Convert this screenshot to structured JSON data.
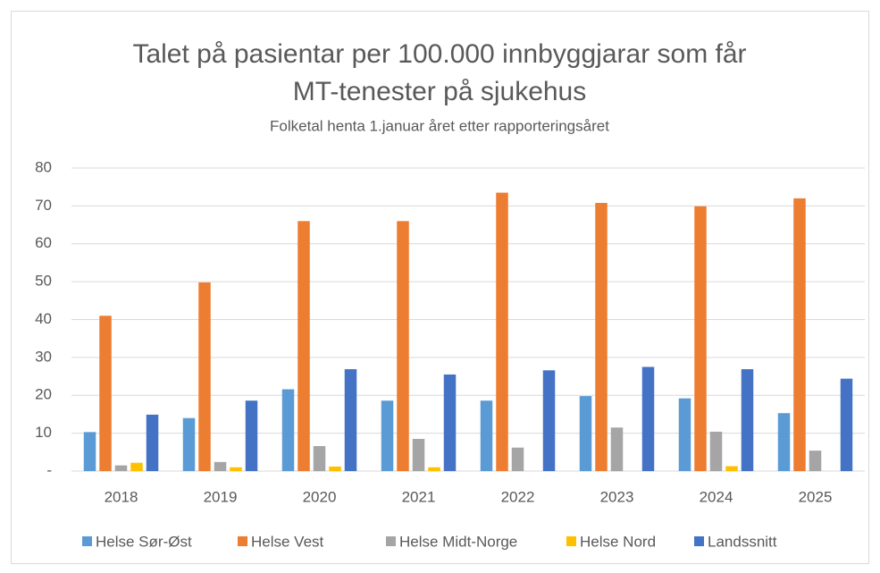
{
  "chart_data": {
    "type": "bar",
    "title": "Talet på pasientar per 100.000 innbyggjarar som får MT-tenester på sjukehus",
    "subtitle": "Folketal henta 1.januar året etter rapporteringsåret",
    "categories": [
      "2018",
      "2019",
      "2020",
      "2021",
      "2022",
      "2023",
      "2024",
      "2025"
    ],
    "series": [
      {
        "name": "Helse Sør-Øst",
        "color": "#5b9bd5",
        "values": [
          10.3,
          14,
          21.6,
          18.6,
          18.6,
          19.8,
          19.2,
          15.3
        ]
      },
      {
        "name": "Helse Vest",
        "color": "#ed7d31",
        "values": [
          41,
          49.8,
          66,
          66,
          73.5,
          70.8,
          69.9,
          72
        ]
      },
      {
        "name": "Helse Midt-Norge",
        "color": "#a5a5a5",
        "values": [
          1.5,
          2.4,
          6.6,
          8.5,
          6.2,
          11.5,
          10.4,
          5.4
        ]
      },
      {
        "name": "Helse Nord",
        "color": "#ffc000",
        "values": [
          2.2,
          1,
          1.2,
          1,
          null,
          null,
          1.3,
          null
        ]
      },
      {
        "name": "Landssnitt",
        "color": "#4472c4",
        "values": [
          14.9,
          18.6,
          26.9,
          25.5,
          26.6,
          27.5,
          26.9,
          24.4
        ]
      }
    ],
    "ylim": [
      0,
      80
    ],
    "yticks": [
      {
        "value": 0,
        "label": "-"
      },
      10,
      20,
      30,
      40,
      50,
      60,
      70,
      80
    ],
    "grid": true,
    "legend": "bottom"
  }
}
